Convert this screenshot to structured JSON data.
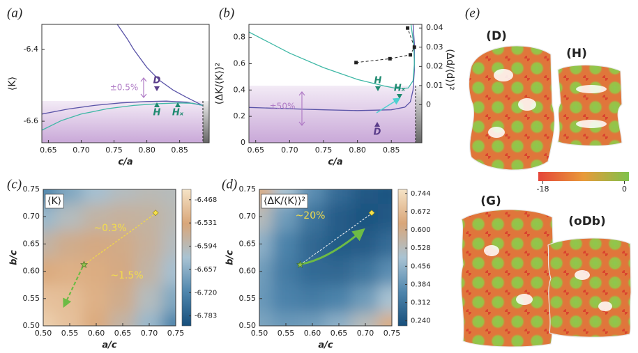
{
  "chart_data": [
    {
      "type": "line",
      "panel_label": "(a)",
      "xlabel": "c/a",
      "ylabel": "⟨K⟩",
      "xlim": [
        0.64,
        0.895
      ],
      "ylim": [
        -6.66,
        -6.33
      ],
      "xticks": [
        0.65,
        {
          "value": 0.7,
          "label": "0.70"
        },
        0.75,
        {
          "value": 0.8,
          "label": "0.80"
        },
        0.85
      ],
      "yticks": [
        -6.4,
        -6.6
      ],
      "series": [
        {
          "color": "#5a54a8",
          "x": [
            0.755,
            0.77,
            0.78,
            0.8,
            0.82,
            0.84,
            0.86,
            0.885
          ],
          "values": [
            -6.33,
            -6.37,
            -6.4,
            -6.45,
            -6.487,
            -6.513,
            -6.533,
            -6.556
          ]
        },
        {
          "color": "#5a54a8",
          "x": [
            0.64,
            0.68,
            0.72,
            0.76,
            0.8,
            0.83,
            0.86,
            0.885
          ],
          "values": [
            -6.58,
            -6.566,
            -6.556,
            -6.549,
            -6.545,
            -6.544,
            -6.547,
            -6.556
          ]
        },
        {
          "color": "#3fb8a6",
          "x": [
            0.64,
            0.67,
            0.7,
            0.74,
            0.78,
            0.82,
            0.85,
            0.87,
            0.885
          ],
          "values": [
            -6.625,
            -6.598,
            -6.58,
            -6.565,
            -6.556,
            -6.551,
            -6.549,
            -6.55,
            -6.556
          ]
        }
      ],
      "annotations": [
        "±0.5%",
        "D",
        "H",
        "Hₓ"
      ]
    },
    {
      "type": "line",
      "panel_label": "(b)",
      "xlabel": "c/a",
      "ylabel": "(ΔK/⟨K⟩)²",
      "y2label": "(Δd/⟨d⟩)²",
      "xlim": [
        0.64,
        0.895
      ],
      "ylim": [
        0,
        0.898
      ],
      "y2lim": [
        -0.0198,
        0.0419
      ],
      "xticks": [
        0.65,
        {
          "value": 0.7,
          "label": "0.70"
        },
        0.75,
        {
          "value": 0.8,
          "label": "0.80"
        },
        0.85
      ],
      "yticks": [
        0,
        0.2,
        0.4,
        0.6,
        0.8
      ],
      "y2ticks": [
        0,
        0.01,
        0.02,
        0.03,
        0.04
      ],
      "series": [
        {
          "color": "#5a54a8",
          "x": [
            0.64,
            0.7,
            0.75,
            0.8,
            0.85,
            0.87,
            0.878,
            0.882,
            0.884,
            0.884,
            0.882
          ],
          "values": [
            0.268,
            0.258,
            0.25,
            0.244,
            0.25,
            0.27,
            0.31,
            0.4,
            0.55,
            0.75,
            0.898
          ]
        },
        {
          "color": "#3fb8a6",
          "x": [
            0.64,
            0.7,
            0.75,
            0.8,
            0.84,
            0.86,
            0.875,
            0.882,
            0.884,
            0.883,
            0.879
          ],
          "values": [
            0.84,
            0.68,
            0.57,
            0.48,
            0.43,
            0.41,
            0.415,
            0.47,
            0.6,
            0.75,
            0.898
          ]
        },
        {
          "color": "#222222",
          "axis": "y2",
          "dashed": true,
          "marker": "square",
          "x": [
            0.798,
            0.848,
            0.878,
            0.884,
            0.874
          ],
          "values": [
            0.022,
            0.024,
            0.026,
            0.03,
            0.04
          ]
        }
      ],
      "annotations": [
        "±50%",
        "H",
        "Hₓ",
        "D"
      ]
    },
    {
      "type": "heatmap",
      "panel_label": "(c)",
      "xlabel": "a/c",
      "ylabel": "b/c",
      "field_label": "⟨K⟩",
      "xlim": [
        0.5,
        0.75
      ],
      "ylim": [
        0.5,
        0.75
      ],
      "xticks": [
        {
          "value": 0.5,
          "label": "0.50"
        },
        0.55,
        {
          "value": 0.6,
          "label": "0.60"
        },
        0.65,
        {
          "value": 0.7,
          "label": "0.70"
        },
        0.75
      ],
      "yticks": [
        {
          "value": 0.5,
          "label": "0.50"
        },
        0.55,
        {
          "value": 0.6,
          "label": "0.60"
        },
        0.65,
        {
          "value": 0.7,
          "label": "0.70"
        },
        0.75
      ],
      "x": [
        0.5,
        0.55,
        0.6,
        0.65,
        0.7,
        0.75
      ],
      "y": [
        0.5,
        0.55,
        0.6,
        0.65,
        0.7,
        0.75
      ],
      "z": [
        [
          -6.47,
          -6.491,
          -6.526,
          -6.577,
          -6.642,
          -6.723
        ],
        [
          -6.491,
          -6.496,
          -6.517,
          -6.552,
          -6.603,
          -6.668
        ],
        [
          -6.526,
          -6.517,
          -6.522,
          -6.543,
          -6.578,
          -6.629
        ],
        [
          -6.577,
          -6.552,
          -6.543,
          -6.548,
          -6.569,
          -6.604
        ],
        [
          -6.642,
          -6.603,
          -6.578,
          -6.569,
          -6.574,
          -6.595
        ],
        [
          -6.723,
          -6.668,
          -6.629,
          -6.604,
          -6.595,
          -6.6
        ]
      ],
      "colormap": [
        "#174f7c",
        "#4f86ad",
        "#a9c3d3",
        "#d9a679",
        "#f5e3c6"
      ],
      "colorbar": {
        "lim": [
          -6.81,
          -6.44
        ],
        "ticks": [
          -6.468,
          -6.531,
          -6.594,
          -6.657,
          {
            "value": -6.72,
            "label": "-6.720"
          },
          -6.783
        ]
      },
      "markers": {
        "x": [
          0.577,
          0.712
        ],
        "y": [
          0.612,
          0.707
        ]
      },
      "annotations": [
        "~0.3%",
        "~1.5%"
      ]
    },
    {
      "type": "heatmap",
      "panel_label": "(d)",
      "xlabel": "a/c",
      "ylabel": "b/c",
      "field_label": "⟨ΔK/⟨K⟩⟩²",
      "xlim": [
        0.5,
        0.75
      ],
      "ylim": [
        0.5,
        0.75
      ],
      "xticks": [
        {
          "value": 0.5,
          "label": "0.50"
        },
        0.55,
        {
          "value": 0.6,
          "label": "0.60"
        },
        0.65,
        {
          "value": 0.7,
          "label": "0.70"
        },
        0.75
      ],
      "yticks": [
        {
          "value": 0.5,
          "label": "0.50"
        },
        0.55,
        {
          "value": 0.6,
          "label": "0.60"
        },
        0.65,
        {
          "value": 0.7,
          "label": "0.70"
        },
        0.75
      ],
      "x": [
        0.5,
        0.55,
        0.6,
        0.65,
        0.7,
        0.75
      ],
      "y": [
        0.5,
        0.55,
        0.6,
        0.65,
        0.7,
        0.75
      ],
      "z": [
        [
          0.424,
          0.397,
          0.406,
          0.449,
          0.528,
          0.641
        ],
        [
          0.397,
          0.346,
          0.329,
          0.348,
          0.401,
          0.49
        ],
        [
          0.406,
          0.329,
          0.288,
          0.281,
          0.31,
          0.373
        ],
        [
          0.449,
          0.348,
          0.281,
          0.25,
          0.253,
          0.292
        ],
        [
          0.528,
          0.401,
          0.31,
          0.253,
          0.232,
          0.245
        ],
        [
          0.641,
          0.49,
          0.373,
          0.292,
          0.245,
          0.234
        ]
      ],
      "colormap": [
        "#174f7c",
        "#4f86ad",
        "#a9c3d3",
        "#d9a679",
        "#f5e3c6"
      ],
      "colorbar": {
        "lim": [
          0.22,
          0.76
        ],
        "ticks": [
          0.744,
          0.672,
          {
            "value": 0.6,
            "label": "0.600"
          },
          0.528,
          0.456,
          0.384,
          0.312,
          {
            "value": 0.24,
            "label": "0.240"
          }
        ]
      },
      "markers": {
        "x": [
          0.577,
          0.712
        ],
        "y": [
          0.612,
          0.707
        ]
      },
      "annotations": [
        "~20%"
      ]
    }
  ],
  "panel_e": {
    "panel_label": "(e)",
    "surfaces": [
      "(D)",
      "(H)",
      "(G)",
      "(oDb)"
    ],
    "colorbar": {
      "lim": [
        -19,
        1
      ],
      "ticks": [
        -18,
        0
      ],
      "colors": [
        "#e5463a",
        "#e89a3a",
        "#7fc24b"
      ]
    }
  }
}
